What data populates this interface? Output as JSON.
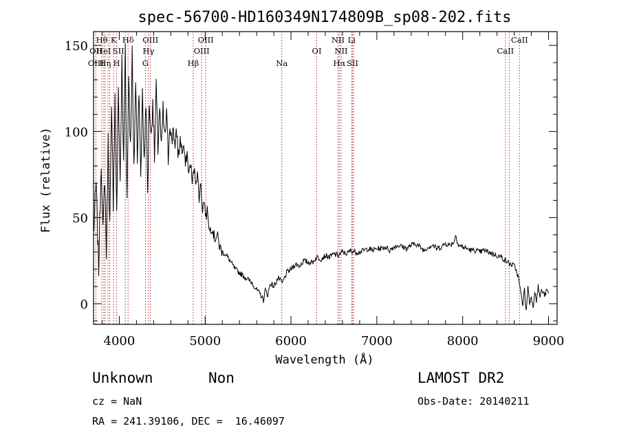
{
  "chart_data": {
    "type": "line",
    "title": "spec-56700-HD160349N174809B_sp08-202.fits",
    "xlabel": "Wavelength (Å)",
    "ylabel": "Flux (relative)",
    "xlim": [
      3700,
      9100
    ],
    "ylim": [
      -12,
      158
    ],
    "xticks": [
      4000,
      5000,
      6000,
      7000,
      8000,
      9000
    ],
    "yticks": [
      0,
      50,
      100,
      150
    ],
    "grid": false,
    "line_color": "#000000",
    "marker_color": "#b22222",
    "series": [
      {
        "x": [
          3700,
          3730,
          3760,
          3790,
          3810,
          3830,
          3850,
          3870,
          3890,
          3910,
          3930,
          3950,
          3970,
          3990,
          4010,
          4030,
          4050,
          4070,
          4090,
          4110,
          4130,
          4150,
          4170,
          4190,
          4210,
          4230,
          4250,
          4270,
          4290,
          4310,
          4330,
          4350,
          4370,
          4390,
          4410,
          4430,
          4450,
          4470,
          4490,
          4510,
          4530,
          4550,
          4570,
          4590,
          4610,
          4630,
          4650,
          4670,
          4690,
          4710,
          4730,
          4750,
          4770,
          4790,
          4810,
          4830,
          4850,
          4870,
          4890,
          4910,
          4930,
          4950,
          4970,
          4990,
          5010,
          5030,
          5050,
          5080,
          5110,
          5140,
          5170,
          5200,
          5250,
          5300,
          5350,
          5400,
          5450,
          5500,
          5550,
          5600,
          5650,
          5680,
          5700,
          5730,
          5760,
          5800,
          5850,
          5900,
          5950,
          6000,
          6050,
          6100,
          6150,
          6200,
          6250,
          6300,
          6350,
          6400,
          6450,
          6500,
          6550,
          6600,
          6650,
          6700,
          6750,
          6800,
          6850,
          6900,
          6950,
          7000,
          7050,
          7100,
          7150,
          7200,
          7250,
          7300,
          7350,
          7400,
          7450,
          7500,
          7550,
          7600,
          7650,
          7700,
          7750,
          7800,
          7850,
          7900,
          7920,
          7950,
          8000,
          8050,
          8100,
          8150,
          8200,
          8250,
          8300,
          8350,
          8400,
          8450,
          8500,
          8550,
          8600,
          8620,
          8650,
          8680,
          8700,
          8720,
          8740,
          8760,
          8780,
          8800,
          8820,
          8840,
          8860,
          8880,
          8900,
          8920,
          8940,
          8960,
          8980,
          9000
        ],
        "y": [
          40,
          70,
          20,
          85,
          40,
          75,
          30,
          95,
          45,
          110,
          60,
          120,
          50,
          125,
          70,
          140,
          80,
          150,
          60,
          135,
          90,
          145,
          75,
          130,
          85,
          128,
          70,
          125,
          80,
          120,
          65,
          118,
          95,
          120,
          85,
          125,
          90,
          115,
          88,
          112,
          95,
          110,
          85,
          108,
          92,
          105,
          88,
          100,
          85,
          96,
          88,
          92,
          80,
          88,
          75,
          82,
          70,
          78,
          72,
          75,
          62,
          70,
          55,
          60,
          50,
          55,
          42,
          45,
          38,
          40,
          33,
          30,
          28,
          24,
          20,
          18,
          16,
          14,
          12,
          8,
          5,
          2,
          8,
          5,
          12,
          10,
          15,
          12,
          18,
          20,
          23,
          22,
          25,
          24,
          24,
          27,
          26,
          28,
          27,
          29,
          28,
          30,
          29,
          31,
          30,
          30,
          31,
          32,
          31,
          32,
          32,
          33,
          31,
          33,
          34,
          33,
          32,
          34,
          35,
          33,
          31,
          33,
          34,
          32,
          33,
          35,
          34,
          36,
          40,
          34,
          33,
          32,
          31,
          31,
          30,
          31,
          30,
          29,
          28,
          27,
          25,
          23,
          22,
          20,
          15,
          5,
          0,
          8,
          -5,
          10,
          0,
          5,
          -3,
          8,
          2,
          10,
          4,
          8,
          6,
          5,
          8,
          6
        ]
      }
    ],
    "line_markers": [
      {
        "x": 3727,
        "top": "OII",
        "bottom": "OIII"
      },
      {
        "x": 3797,
        "top": "Hθ",
        "bottom": ""
      },
      {
        "x": 3819,
        "top": "HeI",
        "bottom": ""
      },
      {
        "x": 3835,
        "top": "",
        "bottom": "Hη"
      },
      {
        "x": 3869,
        "top": "",
        "bottom": ""
      },
      {
        "x": 3889,
        "top": "",
        "bottom": ""
      },
      {
        "x": 3934,
        "top": "K",
        "bottom": ""
      },
      {
        "x": 3969,
        "top": "SII",
        "bottom": "H"
      },
      {
        "x": 4070,
        "top": "",
        "bottom": ""
      },
      {
        "x": 4102,
        "top": "Hδ",
        "bottom": ""
      },
      {
        "x": 4305,
        "top": "",
        "bottom": "G"
      },
      {
        "x": 4340,
        "top": "Hγ",
        "bottom": ""
      },
      {
        "x": 4363,
        "top": "OIII",
        "bottom": ""
      },
      {
        "x": 4861,
        "top": "",
        "bottom": "Hβ"
      },
      {
        "x": 4959,
        "top": "OIII",
        "bottom": ""
      },
      {
        "x": 5007,
        "top": "OIII",
        "bottom": ""
      },
      {
        "x": 5893,
        "top": "",
        "bottom": "Na"
      },
      {
        "x": 6300,
        "top": "OI",
        "bottom": ""
      },
      {
        "x": 6548,
        "top": "NII",
        "bottom": ""
      },
      {
        "x": 6563,
        "top": "",
        "bottom": "Hα"
      },
      {
        "x": 6584,
        "top": "NII",
        "bottom": ""
      },
      {
        "x": 6707,
        "top": "Li",
        "bottom": ""
      },
      {
        "x": 6716,
        "top": "",
        "bottom": "SII"
      },
      {
        "x": 6731,
        "top": "",
        "bottom": ""
      },
      {
        "x": 8498,
        "top": "CaII",
        "bottom": ""
      },
      {
        "x": 8542,
        "top": "",
        "bottom": ""
      },
      {
        "x": 8662,
        "top": "CaII",
        "bottom": ""
      }
    ],
    "line_marker_text": [
      "Hθ",
      "K",
      "Hδ",
      "OIII",
      "OIII",
      "NII",
      "Li",
      "CaII",
      "OII",
      "HeI",
      "SII",
      "Hγ",
      "OIII",
      "OI",
      "NII",
      "CaII",
      "OIII",
      "Hη",
      "H",
      "G",
      "Hβ",
      "Na",
      "Hα",
      "SII"
    ]
  },
  "info": {
    "class": "Unknown",
    "subclass": "Non",
    "survey": "LAMOST DR2",
    "cz": "cz = NaN",
    "obs_date": "Obs-Date: 20140211",
    "coords": "RA = 241.39106, DEC =  16.46097"
  }
}
